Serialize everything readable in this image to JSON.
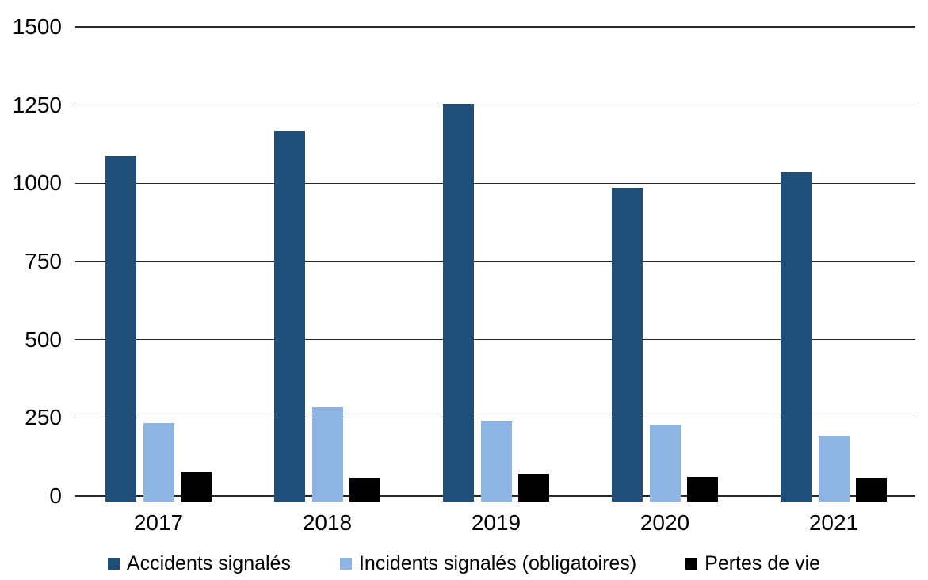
{
  "chart_data": {
    "type": "bar",
    "title": "",
    "xlabel": "",
    "ylabel": "",
    "categories": [
      "2017",
      "2018",
      "2019",
      "2020",
      "2021"
    ],
    "series": [
      {
        "name": "Accidents signalés",
        "color": "#1F4E79",
        "values": [
          1086,
          1167,
          1255,
          986,
          1036
        ]
      },
      {
        "name": "Incidents signalés (obligatoires)",
        "color": "#8EB4E3",
        "values": [
          234,
          284,
          242,
          229,
          193
        ]
      },
      {
        "name": "Pertes de vie",
        "color": "#000000",
        "values": [
          75,
          58,
          70,
          60,
          59
        ]
      }
    ],
    "ylim": [
      0,
      1500
    ],
    "yticks": [
      0,
      250,
      500,
      750,
      1000,
      1250,
      1500
    ],
    "grid": true,
    "gridline_color": "#1a1a1a",
    "legend_position": "bottom",
    "background_color": "#ffffff",
    "text_color": "#000000"
  }
}
